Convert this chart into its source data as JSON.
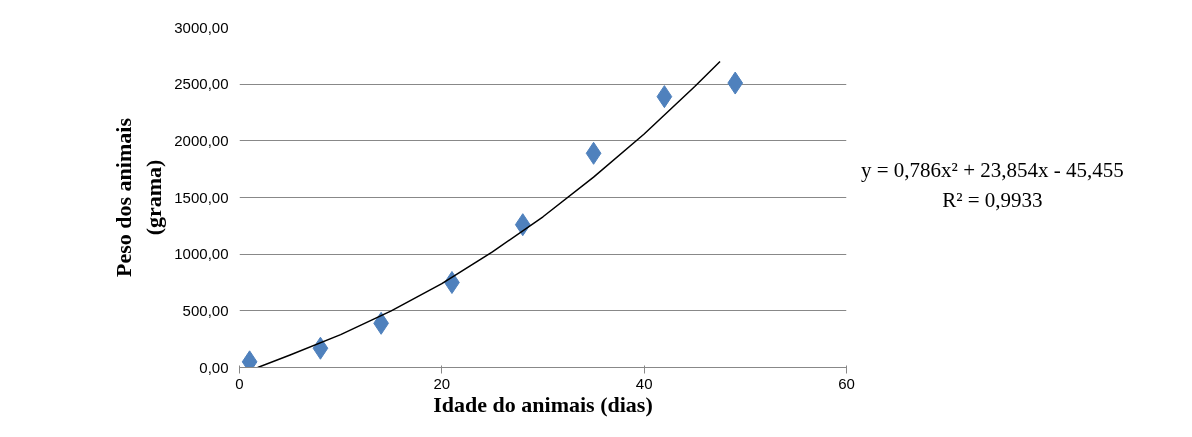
{
  "chart_data": {
    "type": "scatter",
    "xlabel": "Idade do animais (dias)",
    "ylabel": "Peso dos animais\n(grama)",
    "series": [
      {
        "color": "#4f81bd",
        "marker": "diamond",
        "x": [
          1,
          8,
          14,
          21,
          28,
          35,
          42,
          49
        ],
        "values": [
          50,
          170,
          390,
          750,
          1260,
          1890,
          2390,
          2510
        ]
      },
      {
        "type": "line",
        "color": "#000000",
        "line_style": "solid",
        "x": [
          1.8,
          5,
          10,
          15,
          20,
          25,
          30,
          35,
          40,
          45,
          47.5
        ],
        "values": [
          0,
          110,
          290,
          500,
          740,
          1020,
          1330,
          1680,
          2060,
          2480,
          2700
        ]
      }
    ],
    "xlim": [
      0,
      60
    ],
    "ylim": [
      0,
      3000
    ],
    "xticks": [
      0,
      20,
      40,
      60
    ],
    "yticks": [
      {
        "value": 0,
        "label": "0,00"
      },
      {
        "value": 500,
        "label": "500,00"
      },
      {
        "value": 1000,
        "label": "1000,00"
      },
      {
        "value": 1500,
        "label": "1500,00"
      },
      {
        "value": 2000,
        "label": "2000,00"
      },
      {
        "value": 2500,
        "label": "2500,00"
      },
      {
        "value": 3000,
        "label": "3000,00"
      }
    ],
    "grid": "y",
    "annotations": [
      "y = 0,786x² + 23,854x - 45,455",
      "R² = 0,9933"
    ]
  }
}
